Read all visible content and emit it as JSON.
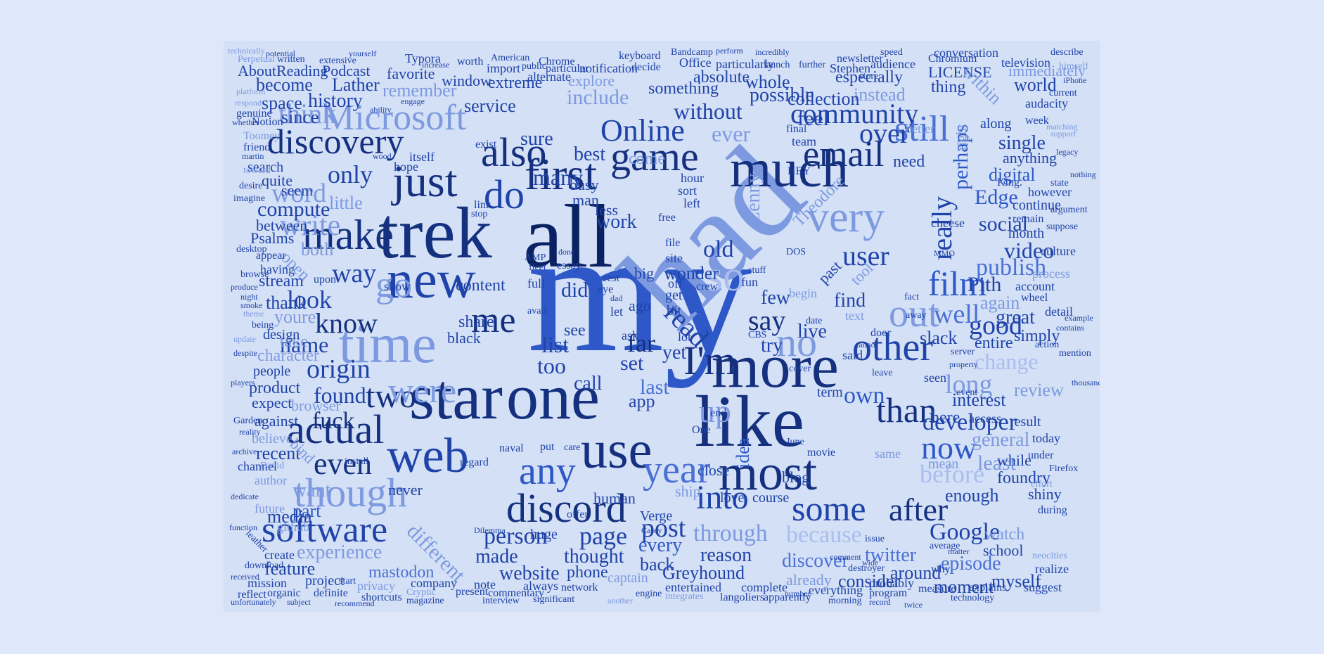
{
  "words": {
    "my": "my",
    "had": "had",
    "trek": "trek",
    "all": "all",
    "star": "star",
    "one": "one",
    "more": "more",
    "like": "like",
    "much": "much",
    "most": "most",
    "web": "web",
    "time": "time",
    "new": "new",
    "first": "first",
    "just": "just",
    "also": "also",
    "discovery": "discovery",
    "microsoft": "Microsoft",
    "email": "email",
    "still": "still",
    "game": "game",
    "make": "make",
    "software": "software",
    "discord": "discord",
    "though": "though",
    "actual": "actual",
    "use": "use",
    "two": "two",
    "even": "even",
    "year": "year",
    "some": "some",
    "after": "after",
    "than": "than",
    "other": "other",
    "film": "film",
    "now": "now",
    "google": "Google",
    "through": "through",
    "because": "because",
    "into": "into",
    "person": "person",
    "page": "page",
    "post": "post",
    "very": "very",
    "community": "community",
    "online": "Online",
    "over": "over",
    "really": "really",
    "out": "out",
    "were": "were",
    "know": "know",
    "origin": "origin",
    "me": "me",
    "im": "I'm",
    "say": "say",
    "no": "no",
    "so": "so",
    "up": "up",
    "do": "do",
    "go": "go",
    "any": "any",
    "write": "write",
    "think": "think",
    "word": "word",
    "only": "only",
    "compute": "compute",
    "look": "look",
    "way": "way",
    "name": "name",
    "found": "found",
    "product": "product",
    "fuck": "fuck",
    "developer": "developer",
    "long": "long",
    "change": "change",
    "good": "good",
    "well": "well",
    "publish": "publish",
    "social": "social",
    "video": "video",
    "user": "user",
    "edge": "Edge",
    "perhaps": "perhaps",
    "digital": "digital",
    "own": "own",
    "before": "before",
    "enough": "enough",
    "least": "least",
    "general": "general",
    "review": "review",
    "interest": "interest",
    "here": "here",
    "twitter": "twitter",
    "episode": "episode",
    "discover": "discover",
    "experience": "experience",
    "mastodon": "mastodon",
    "made": "made",
    "website": "website",
    "phone": "phone",
    "thought": "thought",
    "greyhound": "Greyhound",
    "reason": "reason",
    "back": "back",
    "every": "every",
    "different": "different",
    "want": "want",
    "part": "part",
    "media": "media",
    "recent": "recent",
    "feature": "feature",
    "project": "project",
    "create": "create",
    "mission": "mission",
    "lenny": "Lenny",
    "theodore": "Theodore",
    "pith": "Pith",
    "history": "history",
    "space": "space",
    "service": "service",
    "without": "without",
    "possible": "possible",
    "feel": "feel",
    "ever": "ever",
    "best": "best",
    "sure": "sure",
    "many": "many",
    "include": "include",
    "explore": "explore",
    "extreme": "extreme",
    "remember": "remember",
    "lather": "Lather",
    "become": "become",
    "since": "since",
    "between": "between",
    "stream": "stream",
    "thank": "thank",
    "youre": "youre",
    "take": "take",
    "character": "character",
    "people": "people",
    "expect": "expect",
    "against": "against",
    "believe": "believe",
    "channel": "channel",
    "author": "author",
    "future": "future",
    "github": "github",
    "psalms": "Psalms",
    "open": "open",
    "little": "little",
    "seem": "seem",
    "quite": "quite",
    "search": "search",
    "both": "both",
    "design": "design",
    "read": "read",
    "far": "far",
    "yet": "yet",
    "list": "list",
    "too": "too",
    "call": "call",
    "see": "see",
    "set": "set",
    "last": "last",
    "app": "app",
    "did": "did",
    "content": "content",
    "share": "share",
    "black": "black",
    "few": "few",
    "try": "try",
    "live": "live",
    "find": "find",
    "past": "past",
    "again": "again",
    "great": "great",
    "entire": "entire",
    "simply": "simply",
    "slack": "slack",
    "tool": "tool",
    "idea": "idea",
    "blog": "blog",
    "close": "close",
    "course": "course",
    "love": "love",
    "ship": "ship",
    "verge": "Verge",
    "captain": "captain",
    "already": "already",
    "consider": "consider",
    "around": "around",
    "moment": "moment",
    "myself": "myself",
    "watch": "watch",
    "school": "school",
    "foundry": "foundry",
    "shiny": "shiny",
    "while": "while",
    "mean": "mean",
    "seen": "seen",
    "term": "term",
    "access": "access",
    "result": "result",
    "today": "today",
    "detail": "detail",
    "account": "account",
    "culture": "culture",
    "month": "month",
    "process": "process",
    "however": "however",
    "continue": "continue",
    "single": "single",
    "anything": "anything",
    "world": "world",
    "thing": "thing",
    "license": "LICENSE",
    "especially": "especially",
    "instead": "instead",
    "collection": "collection",
    "whole": "whole",
    "absolute": "absolute",
    "something": "something",
    "window": "window",
    "favorite": "favorite",
    "podcast": "Podcast",
    "aboutreading": "AboutReading",
    "typora": "Typora",
    "chrome": "Chrome",
    "office": "Office",
    "chromium": "Chromium",
    "newsletter": "newsletter",
    "stephen": "Stephen",
    "audience": "audience",
    "conversation": "conversation",
    "television": "television",
    "immediately": "immediately",
    "audacity": "audacity",
    "within": "within",
    "right": "right",
    "need": "need",
    "king": "King.",
    "big": "big",
    "free": "free",
    "work": "work",
    "less": "less",
    "man": "man",
    "busy": "busy",
    "hour": "hour",
    "left": "left",
    "sort": "sort",
    "old": "old",
    "wonder": "wonder",
    "ago": "ago",
    "bit": "bit",
    "get": "get",
    "human": "human",
    "never": "never",
    "browser": "browser",
    "bind": "bind",
    "comes": "come",
    "hope": "hope",
    "toomey": "Toomey",
    "notion": "Notion",
    "friend": "friend",
    "genuine": "genuine",
    "platform": "platform",
    "extensive": "extensive",
    "written": "written",
    "perpetual": "Perpetual",
    "magazine": "magazine",
    "interview": "interview",
    "shortcuts": "shortcuts",
    "privacy": "privacy",
    "company": "company",
    "note": "note",
    "always": "always",
    "network": "network",
    "commentary": "commentary",
    "present": "present",
    "significant": "significant",
    "entertained": "entertained",
    "complete": "complete",
    "langoliers": "langoliers",
    "apparently": "apparently",
    "everything": "everything",
    "probably": "probably",
    "program": "program",
    "measure": "measure",
    "explains": "explains",
    "technology": "technology",
    "suggest": "suggest",
    "realize": "realize",
    "neocities": "neocities",
    "during": "during",
    "under": "under",
    "firefox": "Firefox",
    "effort": "effort",
    "dilemma": "Dilemma",
    "cryptic": "Cryptic",
    "organic": "organic",
    "reflect": "reflect",
    "definite": "definite",
    "start": "start",
    "integrates": "integrates",
    "engine": "engine",
    "another": "another",
    "particularly": "particularly",
    "decide": "decide",
    "bandcamp": "Bandcamp",
    "american": "American",
    "import": "import",
    "worth": "worth",
    "public": "public",
    "particular": "particular",
    "alternate": "alternate",
    "notification": "notification",
    "keyboard": "keyboard",
    "launch": "launch",
    "further": "further",
    "perform": "perform",
    "incredibly": "incredibly",
    "speed": "speed",
    "describe": "describe",
    "current": "current",
    "iphone": "iPhone",
    "himself": "himself",
    "matching": "matching",
    "support": "support",
    "week": "week",
    "better": "better",
    "along": "along",
    "team": "team",
    "final": "final",
    "store": "store",
    "exist": "exist",
    "link": "link",
    "itself": "itself",
    "wood": "wood",
    "martin": "martin",
    "desire": "desire",
    "imagine": "imagine",
    "desktop": "desktop",
    "appear": "appear",
    "having": "having",
    "browse": "browse",
    "upon": "upon",
    "night": "night",
    "produce": "produce",
    "smoke": "smoke",
    "theme": "theme",
    "being": "being",
    "update": "update",
    "despite": "despite",
    "players": "players",
    "garden": "Garden",
    "reality": "reality",
    "archive": "archive",
    "david": "David",
    "dedicate": "dedicate",
    "function": "function",
    "leather": "leather",
    "download": "download",
    "received": "received",
    "unfortunately": "unfortunately",
    "subject": "subject",
    "recommend": "recommend",
    "respond": "respond",
    "whether": "whether",
    "ability": "ability",
    "engage": "engage",
    "toward": "toward",
    "increase": "increase",
    "potential": "potential",
    "yourself": "yourself",
    "technically": "technically",
    "dos": "DOS",
    "hey": "HEY",
    "june": "June",
    "movie": "movie",
    "door": "door",
    "said": "said",
    "text": "text",
    "fact": "fact",
    "away": "away",
    "cheese": "cheese",
    "mmo": "MMO",
    "suppose": "suppose",
    "remain": "remain",
    "argument": "argument",
    "state": "state",
    "nothing": "nothing",
    "legacy": "legacy",
    "mention": "mention",
    "action": "action",
    "contains": "contains",
    "example": "example",
    "wheel": "wheel",
    "thousand": "thousand",
    "property": "property",
    "event": "event",
    "server": "server",
    "stop": "stop",
    "issue": "issue",
    "wide": "wide",
    "average": "average",
    "matter": "matter",
    "comment": "comment",
    "record": "record",
    "twice": "twice",
    "destroyer": "destroyer",
    "morning": "morning",
    "number": "number",
    "cover": "cover",
    "one2": "One",
    "casey": "Casey",
    "huge": "huge",
    "offer": "offer",
    "fleet": "fleet",
    "full": "full",
    "amp": "AMP",
    "avail": "avail",
    "essay": "essay",
    "done": "done",
    "show": "show",
    "naval": "naval",
    "put": "put",
    "regard": "regard",
    "install": "install",
    "care": "care",
    "ask": "ask",
    "cbs": "CBS",
    "lot": "lot",
    "end": "end",
    "crew": "crew",
    "site": "site",
    "file": "file",
    "off": "off",
    "rest": "rest",
    "dad": "dad",
    "let": "let",
    "eye": "eye",
    "why": "why",
    "stuff": "stuff",
    "date": "date",
    "cannot": "cannot",
    "leave": "leave",
    "same": "same",
    "begin": "begin",
    "fun": "fun",
    "entire2": "eyed"
  }
}
